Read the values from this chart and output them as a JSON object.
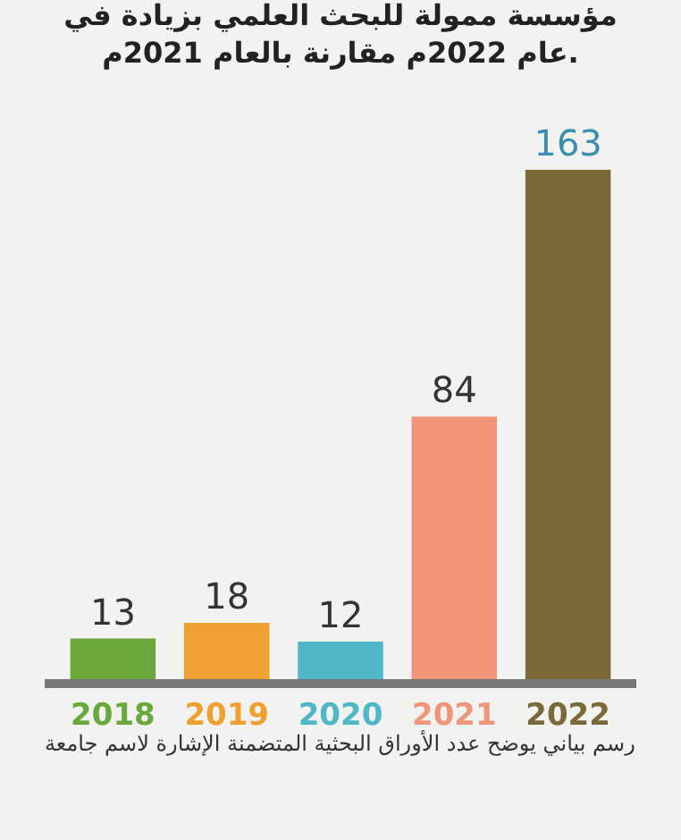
{
  "chart_data": {
    "type": "bar",
    "title": "مؤسسة ممولة للبحث العلمي بزيادة في\nعام 2022م مقارنة بالعام 2021م.",
    "categories": [
      "2018",
      "2019",
      "2020",
      "2021",
      "2022"
    ],
    "values": [
      13,
      18,
      12,
      84,
      163
    ],
    "colors": [
      "#6aa83c",
      "#f0a030",
      "#4fb8c8",
      "#f0957a",
      "#7a6a3a"
    ],
    "data_labels": true,
    "grid": false,
    "legend": false,
    "annotations": [
      "رسم بياني يوضح عدد الأوراق البحثية المتضمنة الإشارة لاسم جامعة"
    ]
  }
}
